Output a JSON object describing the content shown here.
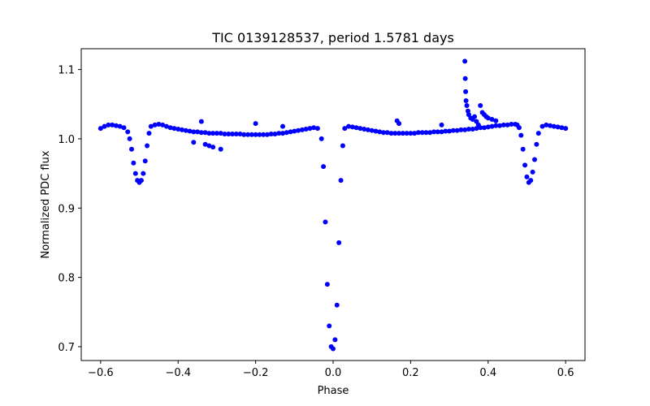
{
  "chart_data": {
    "type": "scatter",
    "title": "TIC 0139128537, period 1.5781 days",
    "xlabel": "Phase",
    "ylabel": "Normalized PDC flux",
    "xlim": [
      -0.65,
      0.65
    ],
    "ylim": [
      0.68,
      1.13
    ],
    "xticks": [
      -0.6,
      -0.4,
      -0.2,
      0.0,
      0.2,
      0.4,
      0.6
    ],
    "xtick_labels": [
      "−0.6",
      "−0.4",
      "−0.2",
      "0.0",
      "0.2",
      "0.4",
      "0.6"
    ],
    "yticks": [
      0.7,
      0.8,
      0.9,
      1.0,
      1.1
    ],
    "ytick_labels": [
      "0.7",
      "0.8",
      "0.9",
      "1.0",
      "1.1"
    ],
    "grid": false,
    "marker_color": "#0000ff",
    "series": [
      {
        "x": [
          -0.6,
          -0.59,
          -0.58,
          -0.57,
          -0.56,
          -0.55,
          -0.54,
          -0.53,
          -0.525,
          -0.52,
          -0.515,
          -0.51,
          -0.505,
          -0.5,
          -0.495,
          -0.49,
          -0.485,
          -0.48,
          -0.475,
          -0.47,
          -0.46,
          -0.45,
          -0.44,
          -0.43,
          -0.42,
          -0.41,
          -0.4,
          -0.39,
          -0.38,
          -0.37,
          -0.36,
          -0.35,
          -0.34,
          -0.33,
          -0.32,
          -0.31,
          -0.3,
          -0.29,
          -0.28,
          -0.27,
          -0.26,
          -0.25,
          -0.24,
          -0.23,
          -0.22,
          -0.21,
          -0.2,
          -0.19,
          -0.18,
          -0.17,
          -0.16,
          -0.15,
          -0.14,
          -0.13,
          -0.12,
          -0.11,
          -0.1,
          -0.09,
          -0.08,
          -0.07,
          -0.06,
          -0.05,
          -0.04,
          -0.03,
          -0.025,
          -0.02,
          -0.015,
          -0.01,
          -0.005,
          0.0,
          0.005,
          0.01,
          0.015,
          0.02,
          0.025,
          0.03,
          0.04,
          0.05,
          0.06,
          0.07,
          0.08,
          0.09,
          0.1,
          0.11,
          0.12,
          0.13,
          0.14,
          0.15,
          0.16,
          0.17,
          0.18,
          0.19,
          0.2,
          0.21,
          0.22,
          0.23,
          0.24,
          0.25,
          0.26,
          0.27,
          0.28,
          0.29,
          0.3,
          0.31,
          0.32,
          0.33,
          0.34,
          0.35,
          0.36,
          0.37,
          0.38,
          0.39,
          0.4,
          0.41,
          0.42,
          0.43,
          0.44,
          0.45,
          0.46,
          0.47,
          0.475,
          0.48,
          0.485,
          0.49,
          0.495,
          0.5,
          0.505,
          0.51,
          0.515,
          0.52,
          0.525,
          0.53,
          0.54,
          0.55,
          0.56,
          0.57,
          0.58,
          0.59,
          0.6
        ],
        "y": [
          1.015,
          1.018,
          1.02,
          1.02,
          1.019,
          1.018,
          1.016,
          1.01,
          1.0,
          0.985,
          0.965,
          0.95,
          0.94,
          0.937,
          0.94,
          0.95,
          0.968,
          0.99,
          1.008,
          1.018,
          1.02,
          1.021,
          1.02,
          1.018,
          1.016,
          1.015,
          1.014,
          1.013,
          1.012,
          1.011,
          1.01,
          1.01,
          1.009,
          1.009,
          1.008,
          1.008,
          1.008,
          1.008,
          1.007,
          1.007,
          1.007,
          1.007,
          1.007,
          1.006,
          1.006,
          1.006,
          1.006,
          1.006,
          1.006,
          1.006,
          1.007,
          1.007,
          1.008,
          1.008,
          1.009,
          1.01,
          1.011,
          1.012,
          1.013,
          1.014,
          1.015,
          1.016,
          1.015,
          1.0,
          0.96,
          0.88,
          0.79,
          0.73,
          0.7,
          0.697,
          0.71,
          0.76,
          0.85,
          0.94,
          0.99,
          1.015,
          1.018,
          1.017,
          1.016,
          1.015,
          1.014,
          1.013,
          1.012,
          1.011,
          1.01,
          1.009,
          1.009,
          1.008,
          1.008,
          1.008,
          1.008,
          1.008,
          1.008,
          1.008,
          1.009,
          1.009,
          1.009,
          1.009,
          1.01,
          1.01,
          1.01,
          1.011,
          1.011,
          1.012,
          1.012,
          1.013,
          1.013,
          1.014,
          1.014,
          1.015,
          1.016,
          1.016,
          1.017,
          1.018,
          1.019,
          1.019,
          1.02,
          1.02,
          1.021,
          1.021,
          1.02,
          1.016,
          1.005,
          0.985,
          0.962,
          0.945,
          0.937,
          0.94,
          0.952,
          0.97,
          0.992,
          1.008,
          1.018,
          1.02,
          1.019,
          1.018,
          1.017,
          1.016,
          1.015
        ]
      },
      {
        "x": [
          -0.34,
          -0.33,
          -0.32,
          -0.31,
          -0.29,
          -0.36,
          0.34,
          0.341,
          0.342,
          0.343,
          0.345,
          0.348,
          0.35,
          0.355,
          0.36,
          0.365,
          0.37,
          0.375,
          0.38,
          0.385,
          0.39,
          0.395,
          0.4,
          0.41,
          0.42,
          0.165,
          0.17,
          -0.13,
          -0.2,
          0.28
        ],
        "y": [
          1.025,
          0.992,
          0.99,
          0.988,
          0.985,
          0.995,
          1.112,
          1.087,
          1.068,
          1.055,
          1.048,
          1.04,
          1.035,
          1.03,
          1.028,
          1.032,
          1.025,
          1.02,
          1.048,
          1.038,
          1.035,
          1.032,
          1.03,
          1.028,
          1.026,
          1.026,
          1.022,
          1.018,
          1.022,
          1.02
        ]
      }
    ]
  }
}
